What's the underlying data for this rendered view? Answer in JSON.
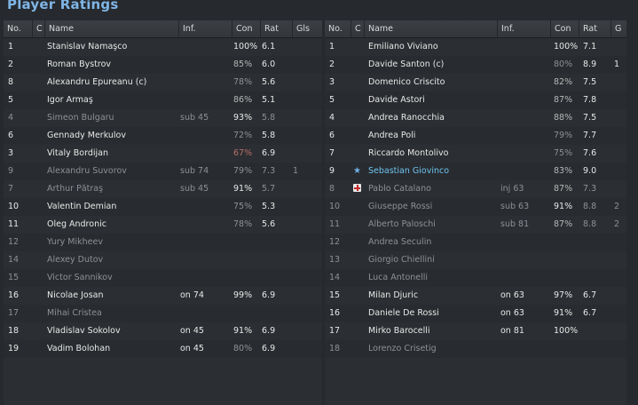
{
  "title": "Player Ratings",
  "left_table": {
    "headers": {
      "no": "No.",
      "c": "C",
      "name": "Name",
      "inf": "Inf.",
      "con": "Con",
      "rat": "Rat",
      "gls": "Gls"
    },
    "rows": [
      {
        "no": "1",
        "name": "Stanislav Namaşco",
        "inf": "",
        "con": "100%",
        "rat": "6.1",
        "gls": "",
        "dim": false,
        "con_color": "#e8e8e8"
      },
      {
        "no": "2",
        "name": "Roman Bystrov",
        "inf": "",
        "con": "85%",
        "rat": "6.0",
        "gls": "",
        "dim": false,
        "con_color": "#b7b7b7"
      },
      {
        "no": "8",
        "name": "Alexandru Epureanu (c)",
        "inf": "",
        "con": "78%",
        "rat": "5.6",
        "gls": "",
        "dim": false,
        "con_color": "#8d9196"
      },
      {
        "no": "5",
        "name": "Igor Armaş",
        "inf": "",
        "con": "86%",
        "rat": "5.1",
        "gls": "",
        "dim": false,
        "con_color": "#b7b7b7"
      },
      {
        "no": "4",
        "name": "Simeon Bulgaru",
        "inf": "sub 45",
        "con": "93%",
        "rat": "5.8",
        "gls": "",
        "dim": true,
        "con_color": "#e8e8e8"
      },
      {
        "no": "6",
        "name": "Gennady Merkulov",
        "inf": "",
        "con": "72%",
        "rat": "5.8",
        "gls": "",
        "dim": false,
        "con_color": "#8d9196"
      },
      {
        "no": "3",
        "name": "Vitaly Bordijan",
        "inf": "",
        "con": "67%",
        "rat": "6.9",
        "gls": "",
        "dim": false,
        "con_color": "#b8706a"
      },
      {
        "no": "9",
        "name": "Alexandru Suvorov",
        "inf": "sub 74",
        "con": "79%",
        "rat": "7.3",
        "gls": "1",
        "dim": true,
        "con_color": "#8d9196"
      },
      {
        "no": "7",
        "name": "Arthur Pătraş",
        "inf": "sub 45",
        "con": "91%",
        "rat": "5.7",
        "gls": "",
        "dim": true,
        "con_color": "#e8e8e8"
      },
      {
        "no": "10",
        "name": "Valentin Demian",
        "inf": "",
        "con": "75%",
        "rat": "5.3",
        "gls": "",
        "dim": false,
        "con_color": "#8d9196"
      },
      {
        "no": "11",
        "name": "Oleg Andronic",
        "inf": "",
        "con": "78%",
        "rat": "5.6",
        "gls": "",
        "dim": false,
        "con_color": "#8d9196"
      },
      {
        "no": "12",
        "name": "Yury Mikheev",
        "inf": "",
        "con": "",
        "rat": "",
        "gls": "",
        "dim": true,
        "con_color": "#8d9196"
      },
      {
        "no": "14",
        "name": "Alexey Dutov",
        "inf": "",
        "con": "",
        "rat": "",
        "gls": "",
        "dim": true,
        "con_color": "#8d9196"
      },
      {
        "no": "15",
        "name": "Victor Sannikov",
        "inf": "",
        "con": "",
        "rat": "",
        "gls": "",
        "dim": true,
        "con_color": "#8d9196"
      },
      {
        "no": "16",
        "name": "Nicolae Josan",
        "inf": "on 74",
        "con": "99%",
        "rat": "6.9",
        "gls": "",
        "dim": false,
        "con_color": "#e8e8e8"
      },
      {
        "no": "17",
        "name": "Mihai Cristea",
        "inf": "",
        "con": "",
        "rat": "",
        "gls": "",
        "dim": true,
        "con_color": "#8d9196"
      },
      {
        "no": "18",
        "name": "Vladislav Sokolov",
        "inf": "on 45",
        "con": "91%",
        "rat": "6.9",
        "gls": "",
        "dim": false,
        "con_color": "#e8e8e8"
      },
      {
        "no": "19",
        "name": "Vadim Bolohan",
        "inf": "on 45",
        "con": "80%",
        "rat": "6.9",
        "gls": "",
        "dim": false,
        "con_color": "#8d9196"
      }
    ]
  },
  "right_table": {
    "headers": {
      "no": "No.",
      "c": "C",
      "name": "Name",
      "inf": "Inf.",
      "con": "Con",
      "rat": "Rat",
      "gls": "G"
    },
    "rows": [
      {
        "no": "1",
        "name": "Emiliano Viviano",
        "inf": "",
        "con": "100%",
        "rat": "7.1",
        "gls": "",
        "dim": false,
        "con_color": "#e8e8e8",
        "icon": ""
      },
      {
        "no": "2",
        "name": "Davide Santon (c)",
        "inf": "",
        "con": "80%",
        "rat": "8.9",
        "gls": "1",
        "dim": false,
        "con_color": "#8d9196",
        "icon": ""
      },
      {
        "no": "3",
        "name": "Domenico Criscito",
        "inf": "",
        "con": "82%",
        "rat": "7.5",
        "gls": "",
        "dim": false,
        "con_color": "#b7b7b7",
        "icon": ""
      },
      {
        "no": "5",
        "name": "Davide Astori",
        "inf": "",
        "con": "87%",
        "rat": "7.8",
        "gls": "",
        "dim": false,
        "con_color": "#b7b7b7",
        "icon": ""
      },
      {
        "no": "4",
        "name": "Andrea Ranocchia",
        "inf": "",
        "con": "88%",
        "rat": "7.5",
        "gls": "",
        "dim": false,
        "con_color": "#b7b7b7",
        "icon": ""
      },
      {
        "no": "6",
        "name": "Andrea Poli",
        "inf": "",
        "con": "79%",
        "rat": "7.7",
        "gls": "",
        "dim": false,
        "con_color": "#8d9196",
        "icon": ""
      },
      {
        "no": "7",
        "name": "Riccardo Montolivo",
        "inf": "",
        "con": "75%",
        "rat": "7.6",
        "gls": "",
        "dim": false,
        "con_color": "#8d9196",
        "icon": ""
      },
      {
        "no": "9",
        "name": "Sebastian Giovinco",
        "inf": "",
        "con": "83%",
        "rat": "9.0",
        "gls": "",
        "dim": false,
        "con_color": "#b7b7b7",
        "icon": "star"
      },
      {
        "no": "8",
        "name": "Pablo Catalano",
        "inf": "inj 63",
        "con": "87%",
        "rat": "7.3",
        "gls": "",
        "dim": true,
        "con_color": "#b7b7b7",
        "icon": "injury"
      },
      {
        "no": "10",
        "name": "Giuseppe Rossi",
        "inf": "sub 63",
        "con": "91%",
        "rat": "8.8",
        "gls": "2",
        "dim": true,
        "con_color": "#e8e8e8",
        "icon": ""
      },
      {
        "no": "11",
        "name": "Alberto Paloschi",
        "inf": "sub 81",
        "con": "87%",
        "rat": "8.8",
        "gls": "2",
        "dim": true,
        "con_color": "#b7b7b7",
        "icon": ""
      },
      {
        "no": "12",
        "name": "Andrea Seculin",
        "inf": "",
        "con": "",
        "rat": "",
        "gls": "",
        "dim": true,
        "con_color": "#8d9196",
        "icon": ""
      },
      {
        "no": "13",
        "name": "Giorgio Chiellini",
        "inf": "",
        "con": "",
        "rat": "",
        "gls": "",
        "dim": true,
        "con_color": "#8d9196",
        "icon": ""
      },
      {
        "no": "14",
        "name": "Luca Antonelli",
        "inf": "",
        "con": "",
        "rat": "",
        "gls": "",
        "dim": true,
        "con_color": "#8d9196",
        "icon": ""
      },
      {
        "no": "15",
        "name": "Milan Djuric",
        "inf": "on 63",
        "con": "97%",
        "rat": "6.7",
        "gls": "",
        "dim": false,
        "con_color": "#e8e8e8",
        "icon": ""
      },
      {
        "no": "16",
        "name": "Daniele De Rossi",
        "inf": "on 63",
        "con": "91%",
        "rat": "6.7",
        "gls": "",
        "dim": false,
        "con_color": "#e8e8e8",
        "icon": ""
      },
      {
        "no": "17",
        "name": "Mirko Barocelli",
        "inf": "on 81",
        "con": "100%",
        "rat": "",
        "gls": "",
        "dim": false,
        "con_color": "#e8e8e8",
        "icon": ""
      },
      {
        "no": "18",
        "name": "Lorenzo Crisetig",
        "inf": "",
        "con": "",
        "rat": "",
        "gls": "",
        "dim": true,
        "con_color": "#8d9196",
        "icon": ""
      }
    ]
  }
}
